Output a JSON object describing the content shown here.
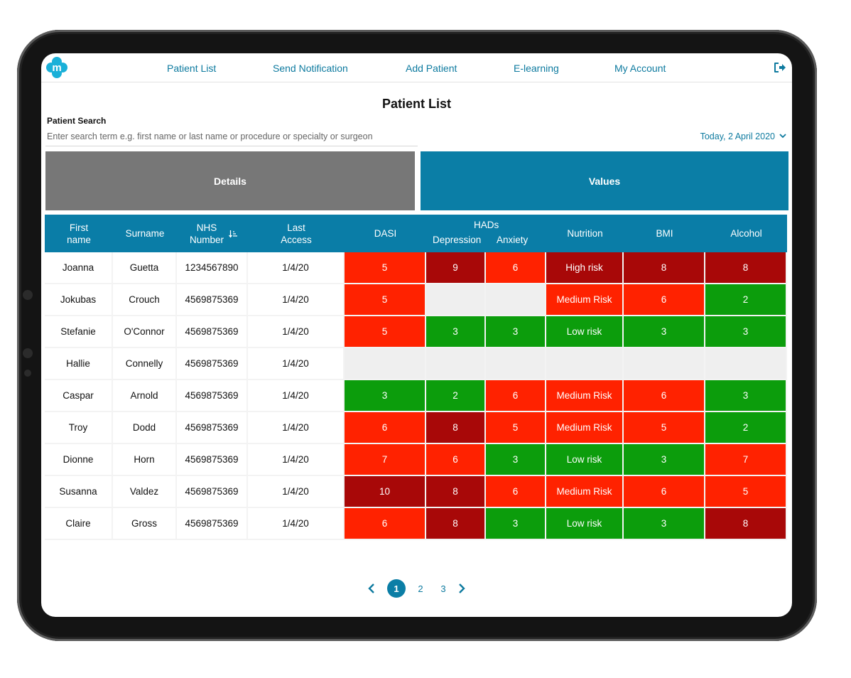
{
  "nav": {
    "logo_letter": "m",
    "items": [
      "Patient List",
      "Send Notification",
      "Add Patient",
      "E-learning",
      "My Account"
    ]
  },
  "page_title": "Patient List",
  "search": {
    "label": "Patient Search",
    "placeholder": "Enter search term e.g. first name or last name or procedure or specialty or surgeon"
  },
  "date_filter": "Today, 2 April 2020",
  "tabs": {
    "details": "Details",
    "values": "Values"
  },
  "table": {
    "headers": {
      "first_name": "First name",
      "surname": "Surname",
      "nhs_number": "NHS Number",
      "last_access": "Last Access",
      "dasi": "DASI",
      "hads": "HADs",
      "depression": "Depression",
      "anxiety": "Anxiety",
      "nutrition": "Nutrition",
      "bmi": "BMI",
      "alcohol": "Alcohol"
    },
    "rows": [
      {
        "first": "Joanna",
        "surname": "Guetta",
        "nhs": "1234567890",
        "last": "1/4/20",
        "values": [
          [
            "5",
            "lg"
          ],
          [
            "9",
            "dr"
          ],
          [
            "6",
            "lg"
          ],
          [
            "High risk",
            "dr"
          ],
          [
            "8",
            "dr"
          ],
          [
            "8",
            "dr"
          ]
        ]
      },
      {
        "first": "Jokubas",
        "surname": "Crouch",
        "nhs": "4569875369",
        "last": "1/4/20",
        "values": [
          [
            "5",
            "lg"
          ],
          [
            "",
            "em"
          ],
          [
            "",
            "em"
          ],
          [
            "Medium Risk",
            "lg"
          ],
          [
            "6",
            "lg"
          ],
          [
            "2",
            "gr"
          ]
        ]
      },
      {
        "first": "Stefanie",
        "surname": "O'Connor",
        "nhs": "4569875369",
        "last": "1/4/20",
        "values": [
          [
            "5",
            "lg"
          ],
          [
            "3",
            "gr"
          ],
          [
            "3",
            "gr"
          ],
          [
            "Low risk",
            "gr"
          ],
          [
            "3",
            "gr"
          ],
          [
            "3",
            "gr"
          ]
        ]
      },
      {
        "first": "Hallie",
        "surname": "Connelly",
        "nhs": "4569875369",
        "last": "1/4/20",
        "values": [
          [
            "",
            "em"
          ],
          [
            "",
            "em"
          ],
          [
            "",
            "em"
          ],
          [
            "",
            "em"
          ],
          [
            "",
            "em"
          ],
          [
            "",
            "em"
          ]
        ]
      },
      {
        "first": "Caspar",
        "surname": "Arnold",
        "nhs": "4569875369",
        "last": "1/4/20",
        "values": [
          [
            "3",
            "gr"
          ],
          [
            "2",
            "gr"
          ],
          [
            "6",
            "lg"
          ],
          [
            "Medium Risk",
            "lg"
          ],
          [
            "6",
            "lg"
          ],
          [
            "3",
            "gr"
          ]
        ]
      },
      {
        "first": "Troy",
        "surname": "Dodd",
        "nhs": "4569875369",
        "last": "1/4/20",
        "values": [
          [
            "6",
            "lg"
          ],
          [
            "8",
            "dr"
          ],
          [
            "5",
            "lg"
          ],
          [
            "Medium Risk",
            "lg"
          ],
          [
            "5",
            "lg"
          ],
          [
            "2",
            "gr"
          ]
        ]
      },
      {
        "first": "Dionne",
        "surname": "Horn",
        "nhs": "4569875369",
        "last": "1/4/20",
        "values": [
          [
            "7",
            "lg"
          ],
          [
            "6",
            "lg"
          ],
          [
            "3",
            "gr"
          ],
          [
            "Low risk",
            "gr"
          ],
          [
            "3",
            "gr"
          ],
          [
            "7",
            "lg"
          ]
        ]
      },
      {
        "first": "Susanna",
        "surname": "Valdez",
        "nhs": "4569875369",
        "last": "1/4/20",
        "values": [
          [
            "10",
            "dr"
          ],
          [
            "8",
            "dr"
          ],
          [
            "6",
            "lg"
          ],
          [
            "Medium Risk",
            "lg"
          ],
          [
            "6",
            "lg"
          ],
          [
            "5",
            "lg"
          ]
        ]
      },
      {
        "first": "Claire",
        "surname": "Gross",
        "nhs": "4569875369",
        "last": "1/4/20",
        "values": [
          [
            "6",
            "lg"
          ],
          [
            "8",
            "dr"
          ],
          [
            "3",
            "gr"
          ],
          [
            "Low risk",
            "gr"
          ],
          [
            "3",
            "gr"
          ],
          [
            "8",
            "dr"
          ]
        ]
      }
    ]
  },
  "pagination": {
    "pages": [
      "1",
      "2",
      "3"
    ],
    "current": "1"
  },
  "colors": {
    "accent": "#0b7ea6",
    "high": "#a80808",
    "medium": "#ff2200",
    "low": "#0c9d0c",
    "empty": "#efefef"
  }
}
